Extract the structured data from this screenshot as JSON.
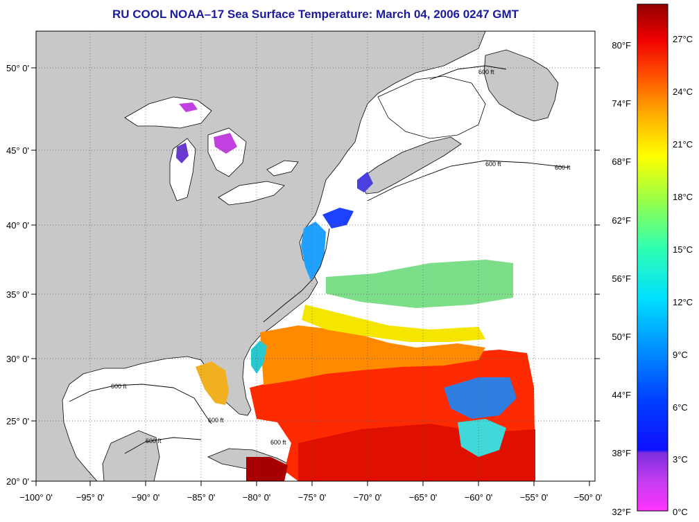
{
  "title": "RU COOL  NOAA–17  Sea Surface Temperature:  March 04, 2006 0247 GMT",
  "lon_ticks": [
    "−100° 0'",
    "−95° 0'",
    "−90° 0'",
    "−85° 0'",
    "−80° 0'",
    "−75° 0'",
    "−70° 0'",
    "−65° 0'",
    "−60° 0'",
    "−55° 0'",
    "−50° 0'"
  ],
  "lat_ticks": [
    "50° 0'",
    "45° 0'",
    "40° 0'",
    "35° 0'",
    "30° 0'",
    "25° 0'",
    "20° 0'"
  ],
  "fahrenheit_ticks": [
    "80°F",
    "74°F",
    "68°F",
    "62°F",
    "56°F",
    "50°F",
    "44°F",
    "38°F",
    "32°F"
  ],
  "celsius_ticks": [
    "27°C",
    "24°C",
    "21°C",
    "18°C",
    "15°C",
    "12°C",
    "9°C",
    "6°C",
    "3°C",
    "0°C"
  ],
  "contour_label": "600 ft",
  "map_extent": {
    "lon": [
      -100,
      -50
    ],
    "lat": [
      20,
      52.5
    ]
  },
  "colors": {
    "title": "#1a1a9c",
    "land": "#c8c8c8",
    "cloud": "#ffffff",
    "scale": [
      "#ff33ff",
      "#8a2be2",
      "#0000ff",
      "#00bfff",
      "#00ffff",
      "#7fff7f",
      "#ffff00",
      "#ffa500",
      "#ff3300",
      "#b30000"
    ]
  }
}
